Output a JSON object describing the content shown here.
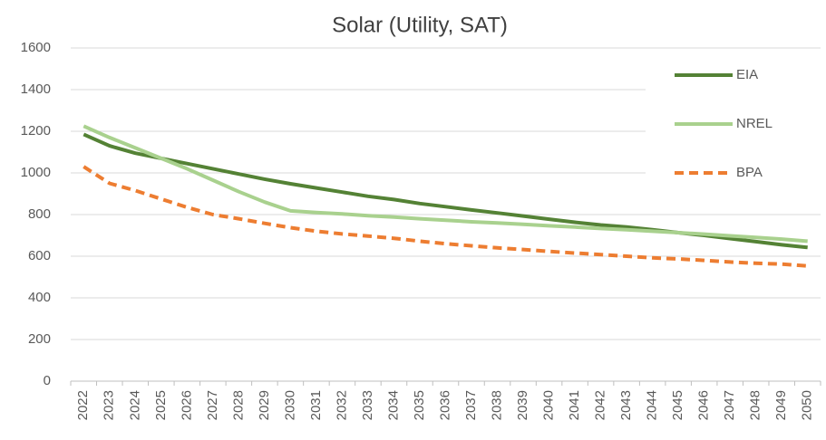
{
  "chart_data": {
    "type": "line",
    "title": "Solar (Utility, SAT)",
    "categories": [
      "2022",
      "2023",
      "2024",
      "2025",
      "2026",
      "2027",
      "2028",
      "2029",
      "2030",
      "2031",
      "2032",
      "2033",
      "2034",
      "2035",
      "2036",
      "2037",
      "2038",
      "2039",
      "2040",
      "2041",
      "2042",
      "2043",
      "2044",
      "2045",
      "2046",
      "2047",
      "2048",
      "2049",
      "2050"
    ],
    "series": [
      {
        "name": "EIA",
        "color": "#548235",
        "dash": false,
        "values": [
          1185,
          1130,
          1095,
          1070,
          1045,
          1020,
          995,
          970,
          948,
          928,
          908,
          888,
          872,
          853,
          838,
          822,
          808,
          793,
          778,
          763,
          750,
          740,
          727,
          713,
          700,
          685,
          670,
          655,
          642
        ]
      },
      {
        "name": "NREL",
        "color": "#a9d18e",
        "dash": false,
        "values": [
          1225,
          1170,
          1120,
          1070,
          1020,
          965,
          910,
          860,
          818,
          810,
          803,
          795,
          788,
          780,
          773,
          765,
          760,
          753,
          746,
          740,
          733,
          727,
          720,
          713,
          706,
          698,
          690,
          682,
          672
        ]
      },
      {
        "name": "BPA",
        "color": "#ed7d31",
        "dash": true,
        "values": [
          1030,
          950,
          915,
          875,
          835,
          800,
          780,
          758,
          737,
          720,
          707,
          697,
          686,
          672,
          660,
          650,
          640,
          632,
          623,
          615,
          608,
          600,
          592,
          587,
          580,
          572,
          566,
          562,
          553
        ]
      }
    ],
    "ylim": [
      0,
      1600
    ],
    "yticks": [
      0,
      200,
      400,
      600,
      800,
      1000,
      1200,
      1400,
      1600
    ],
    "grid": true,
    "legend": "right"
  }
}
